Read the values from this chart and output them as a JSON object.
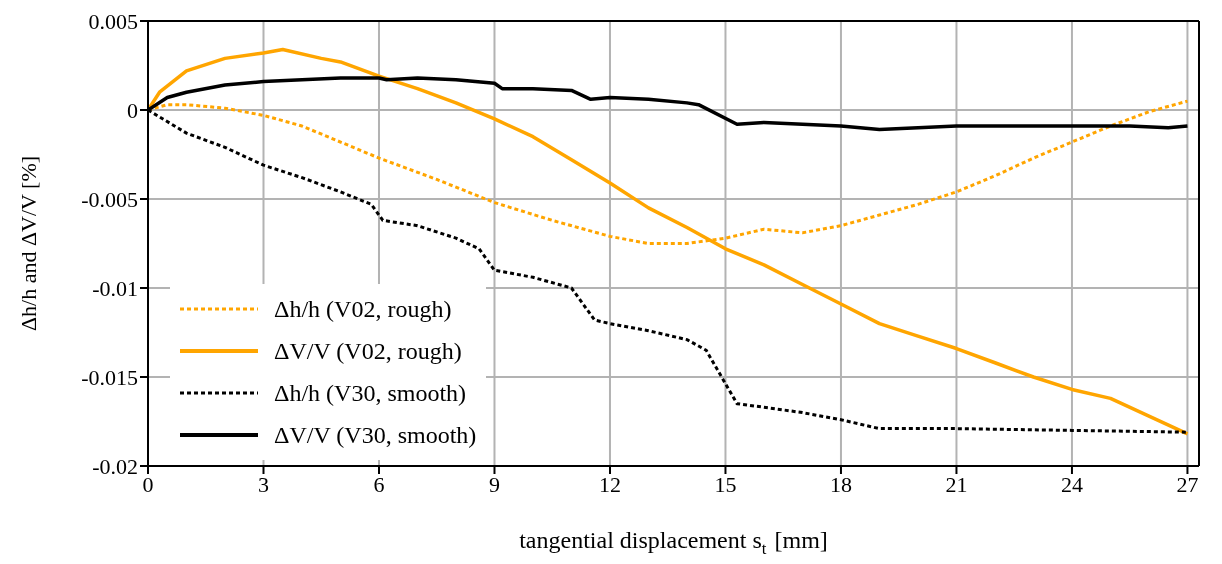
{
  "chart_data": {
    "type": "line",
    "xlabel": "tangential displacement s$_{t}$ [mm]",
    "ylabel": "Δh/h and ΔV/V [%]",
    "xlim": [
      0,
      27.3
    ],
    "xticks": [
      0,
      3,
      6,
      9,
      12,
      15,
      18,
      21,
      24,
      27
    ],
    "ylim": [
      -0.02,
      0.005
    ],
    "yticks": [
      -0.02,
      -0.015,
      -0.01,
      -0.005,
      0,
      0.005
    ],
    "grid": true,
    "legend": "bottom left",
    "marker": "none",
    "series": [
      {
        "name": "Δh/h (V02, rough)",
        "color": "#ffa500",
        "line_style": "dotted",
        "x": [
          0,
          0.5,
          1,
          2,
          3,
          4,
          5,
          6,
          7.5,
          9,
          10.5,
          12,
          13,
          14,
          15,
          16,
          17,
          18,
          19,
          20,
          21,
          22,
          23,
          24,
          25,
          25.5,
          26,
          27
        ],
        "values": [
          0,
          0.0003,
          0.0003,
          0.0001,
          -0.0003,
          -0.0009,
          -0.0018,
          -0.0027,
          -0.0039,
          -0.0052,
          -0.0062,
          -0.0071,
          -0.0075,
          -0.0075,
          -0.0072,
          -0.0067,
          -0.0069,
          -0.0065,
          -0.0059,
          -0.0053,
          -0.0046,
          -0.0037,
          -0.0027,
          -0.0018,
          -0.0009,
          -0.0005,
          -0.0001,
          0.0005
        ]
      },
      {
        "name": "ΔV/V (V02, rough)",
        "color": "#ffa500",
        "line_style": "solid",
        "x": [
          0,
          0.3,
          1,
          2,
          3,
          3.5,
          4.5,
          5,
          6,
          7,
          8,
          9,
          10,
          11,
          12,
          13,
          14,
          15,
          16,
          17,
          18,
          19,
          20,
          21,
          22,
          23,
          24,
          25,
          26,
          27
        ],
        "values": [
          0,
          0.001,
          0.0022,
          0.0029,
          0.0032,
          0.0034,
          0.0029,
          0.0027,
          0.0019,
          0.0012,
          0.0004,
          -0.0005,
          -0.0015,
          -0.0028,
          -0.0041,
          -0.0055,
          -0.0066,
          -0.0078,
          -0.0087,
          -0.0098,
          -0.0109,
          -0.012,
          -0.0127,
          -0.0134,
          -0.0142,
          -0.015,
          -0.0157,
          -0.0162,
          -0.0172,
          -0.0182
        ]
      },
      {
        "name": "Δh/h (V30, smooth)",
        "color": "#000000",
        "line_style": "dotted",
        "x": [
          0,
          1,
          2,
          3,
          4,
          5,
          5.8,
          6.1,
          7,
          8,
          8.6,
          9,
          10,
          11,
          11.6,
          12,
          13,
          14,
          14.5,
          15.3,
          16,
          17,
          18,
          19,
          21,
          24,
          27
        ],
        "values": [
          0,
          -0.0013,
          -0.0021,
          -0.0031,
          -0.0038,
          -0.0046,
          -0.0053,
          -0.0062,
          -0.0065,
          -0.0072,
          -0.0078,
          -0.009,
          -0.0094,
          -0.01,
          -0.0118,
          -0.012,
          -0.0124,
          -0.0129,
          -0.0135,
          -0.0165,
          -0.0167,
          -0.017,
          -0.0174,
          -0.0179,
          -0.0179,
          -0.018,
          -0.0181
        ]
      },
      {
        "name": "ΔV/V (V30, smooth)",
        "color": "#000000",
        "line_style": "solid",
        "x": [
          0,
          0.5,
          1,
          2,
          3,
          4,
          5,
          6,
          6.2,
          7,
          8,
          9,
          9.2,
          10,
          11,
          11.5,
          12,
          13,
          14,
          14.3,
          15.3,
          16,
          17,
          18,
          19,
          20,
          21,
          24,
          25.5,
          26.5,
          27
        ],
        "values": [
          0,
          0.0007,
          0.001,
          0.0014,
          0.0016,
          0.0017,
          0.0018,
          0.0018,
          0.0017,
          0.0018,
          0.0017,
          0.0015,
          0.0012,
          0.0012,
          0.0011,
          0.0006,
          0.0007,
          0.0006,
          0.0004,
          0.0003,
          -0.0008,
          -0.0007,
          -0.0008,
          -0.0009,
          -0.0011,
          -0.001,
          -0.0009,
          -0.0009,
          -0.0009,
          -0.001,
          -0.0009
        ]
      }
    ]
  }
}
